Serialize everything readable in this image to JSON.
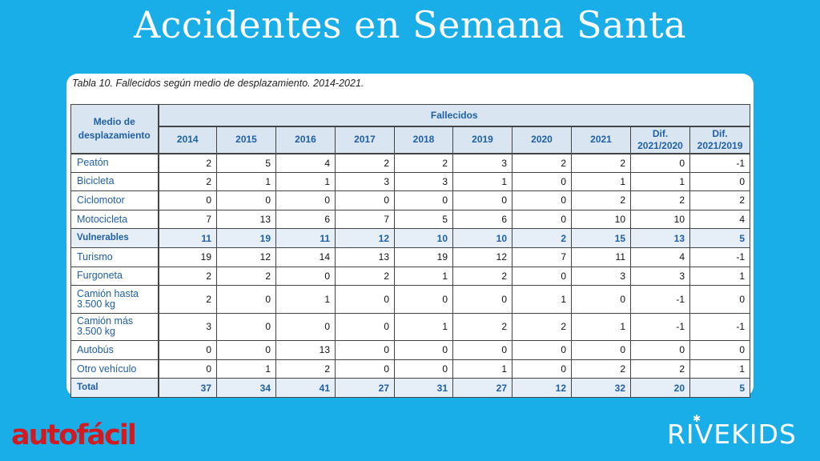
{
  "slide_title": "Accidentes en Semana Santa",
  "caption": "Tabla 10. Fallecidos según medio de desplazamiento. 2014-2021.",
  "table": {
    "corner_header": "Medio de desplazamiento",
    "group_header": "Fallecidos",
    "columns": [
      "2014",
      "2015",
      "2016",
      "2017",
      "2018",
      "2019",
      "2020",
      "2021",
      "Dif. 2021/2020",
      "Dif. 2021/2019"
    ],
    "rows": [
      {
        "label": "Peatón",
        "values": [
          "2",
          "5",
          "4",
          "2",
          "2",
          "3",
          "2",
          "2",
          "0",
          "-1"
        ]
      },
      {
        "label": "Bicicleta",
        "values": [
          "2",
          "1",
          "1",
          "3",
          "3",
          "1",
          "0",
          "1",
          "1",
          "0"
        ]
      },
      {
        "label": "Ciclomotor",
        "values": [
          "0",
          "0",
          "0",
          "0",
          "0",
          "0",
          "0",
          "2",
          "2",
          "2"
        ]
      },
      {
        "label": "Motocicleta",
        "values": [
          "7",
          "13",
          "6",
          "7",
          "5",
          "6",
          "0",
          "10",
          "10",
          "4"
        ]
      },
      {
        "label": "Vulnerables",
        "values": [
          "11",
          "19",
          "11",
          "12",
          "10",
          "10",
          "2",
          "15",
          "13",
          "5"
        ]
      },
      {
        "label": "Turismo",
        "values": [
          "19",
          "12",
          "14",
          "13",
          "19",
          "12",
          "7",
          "11",
          "4",
          "-1"
        ]
      },
      {
        "label": "Furgoneta",
        "values": [
          "2",
          "2",
          "0",
          "2",
          "1",
          "2",
          "0",
          "3",
          "3",
          "1"
        ]
      },
      {
        "label": "Camión hasta 3.500 kg",
        "values": [
          "2",
          "0",
          "1",
          "0",
          "0",
          "0",
          "1",
          "0",
          "-1",
          "0"
        ]
      },
      {
        "label": "Camión más 3.500 kg",
        "values": [
          "3",
          "0",
          "0",
          "0",
          "1",
          "2",
          "2",
          "1",
          "-1",
          "-1"
        ]
      },
      {
        "label": "Autobús",
        "values": [
          "0",
          "0",
          "13",
          "0",
          "0",
          "0",
          "0",
          "0",
          "0",
          "0"
        ]
      },
      {
        "label": "Otro vehículo",
        "values": [
          "0",
          "1",
          "2",
          "0",
          "0",
          "1",
          "0",
          "2",
          "2",
          "1"
        ]
      },
      {
        "label": "Total",
        "values": [
          "37",
          "34",
          "41",
          "27",
          "31",
          "27",
          "12",
          "32",
          "20",
          "5"
        ]
      }
    ]
  },
  "logo_left": "autofácil",
  "logo_right": "RIVEKIDS",
  "colors": {
    "background": "#19aee8",
    "header_text": "#1f5fa6",
    "highlight_row": "#e6eef7",
    "logo_left": "#d11b21"
  }
}
